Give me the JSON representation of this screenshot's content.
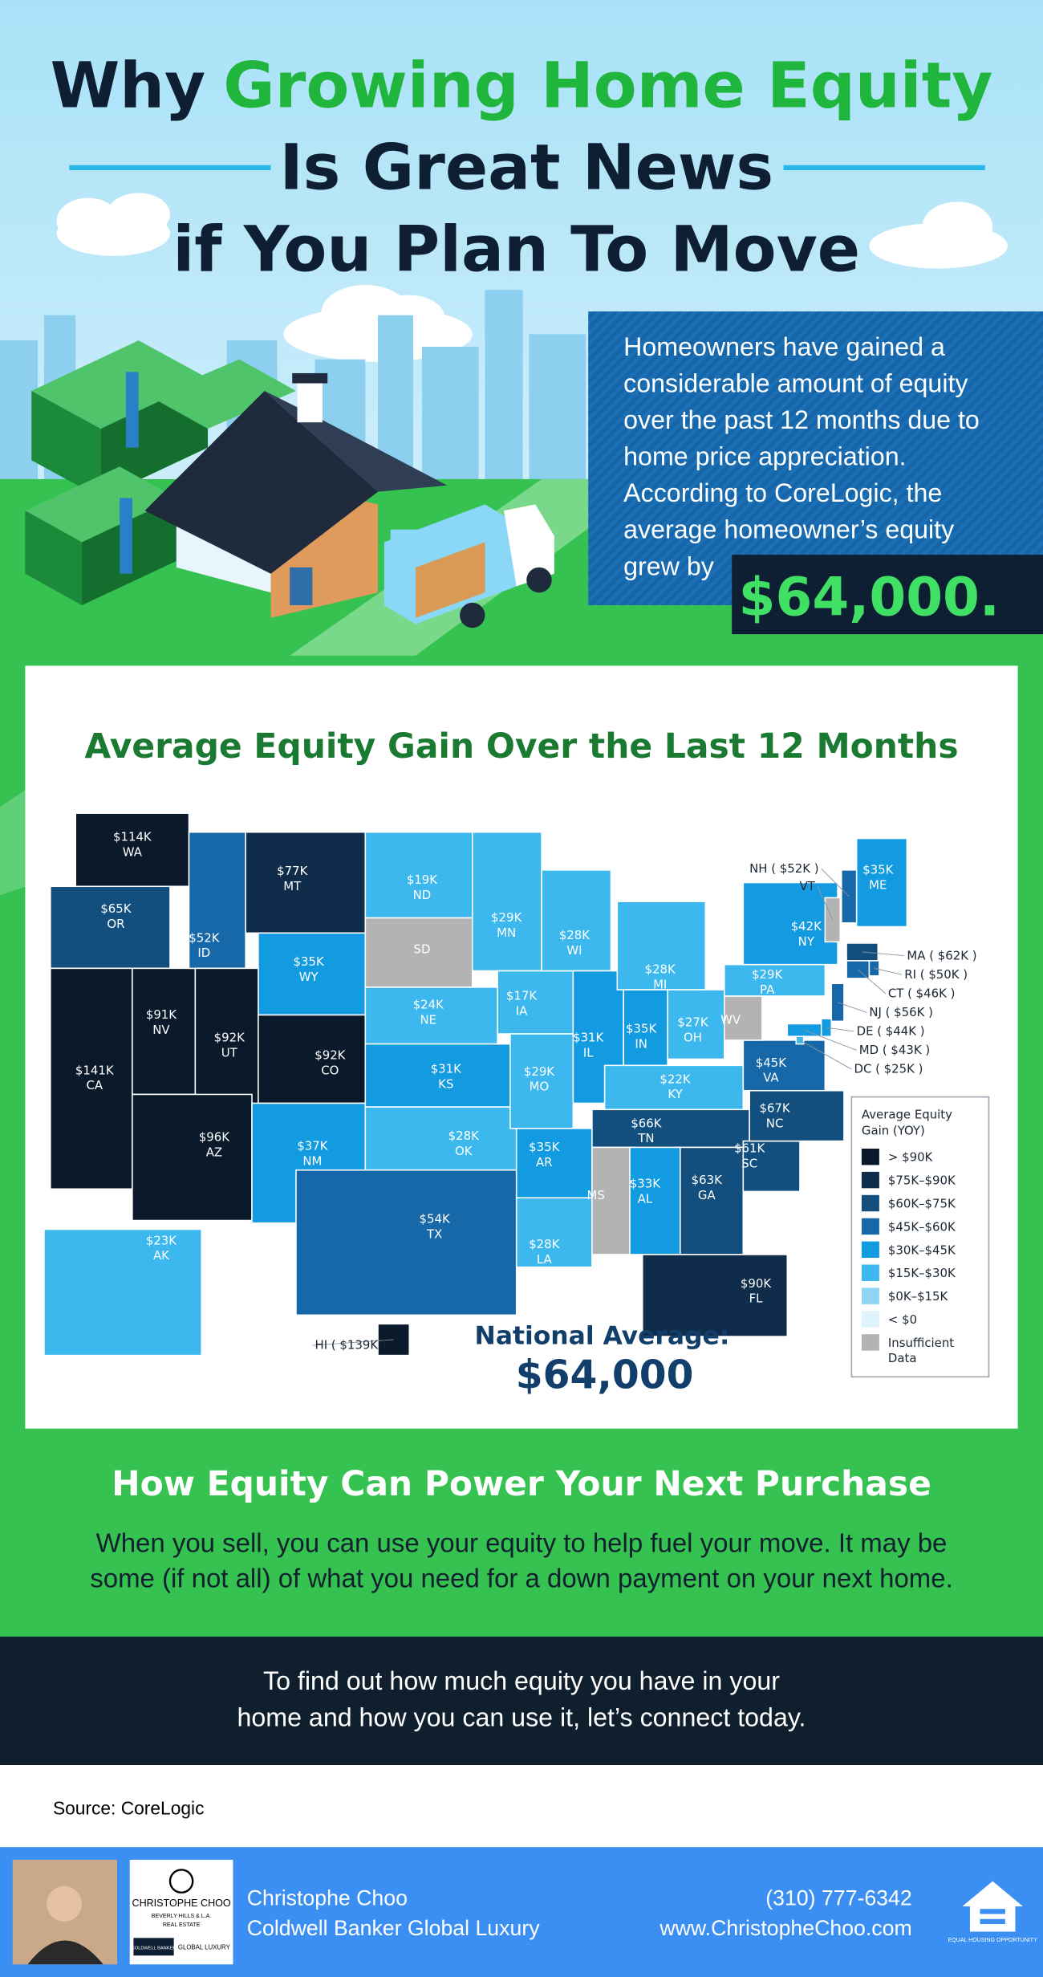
{
  "header": {
    "title_lead": "Why",
    "title_highlight": "Growing Home Equity",
    "title_line2": "Is Great News",
    "title_line3": "if You Plan To Move"
  },
  "intro": {
    "lines": [
      "Homeowners have gained a",
      "considerable amount of equity",
      "over the past 12 months due to",
      "home price appreciation.",
      "According to CoreLogic, the",
      "average homeowner’s equity",
      "grew by"
    ],
    "highlight": "$64,000."
  },
  "map": {
    "title": "Average Equity Gain Over the Last 12 Months",
    "states": [
      {
        "code": "WA",
        "value": "$114K",
        "color": "#0b1a2b"
      },
      {
        "code": "OR",
        "value": "$65K",
        "color": "#134f7e"
      },
      {
        "code": "CA",
        "value": "$141K",
        "color": "#0b1a2b"
      },
      {
        "code": "NV",
        "value": "$91K",
        "color": "#0b1a2b"
      },
      {
        "code": "ID",
        "value": "$52K",
        "color": "#1668a8"
      },
      {
        "code": "MT",
        "value": "$77K",
        "color": "#0f2d4a"
      },
      {
        "code": "WY",
        "value": "$35K",
        "color": "#139be2"
      },
      {
        "code": "UT",
        "value": "$92K",
        "color": "#0b1a2b"
      },
      {
        "code": "CO",
        "value": "$92K",
        "color": "#0b1a2b"
      },
      {
        "code": "AZ",
        "value": "$96K",
        "color": "#0b1a2b"
      },
      {
        "code": "NM",
        "value": "$37K",
        "color": "#139be2"
      },
      {
        "code": "ND",
        "value": "$19K",
        "color": "#3cb8ee"
      },
      {
        "code": "SD",
        "color": "#b3b3b3"
      },
      {
        "code": "NE",
        "value": "$24K",
        "color": "#3cb8ee"
      },
      {
        "code": "KS",
        "value": "$31K",
        "color": "#139be2"
      },
      {
        "code": "OK",
        "value": "$28K",
        "color": "#3cb8ee"
      },
      {
        "code": "TX",
        "value": "$54K",
        "color": "#1668a8"
      },
      {
        "code": "MN",
        "value": "$29K",
        "color": "#3cb8ee"
      },
      {
        "code": "IA",
        "value": "$17K",
        "color": "#3cb8ee"
      },
      {
        "code": "WI",
        "value": "$28K",
        "color": "#3cb8ee"
      },
      {
        "code": "MO",
        "value": "$29K",
        "color": "#3cb8ee"
      },
      {
        "code": "AR",
        "value": "$35K",
        "color": "#139be2"
      },
      {
        "code": "LA",
        "value": "$28K",
        "color": "#3cb8ee"
      },
      {
        "code": "IL",
        "value": "$31K",
        "color": "#139be2"
      },
      {
        "code": "MI",
        "value": "$28K",
        "color": "#3cb8ee"
      },
      {
        "code": "IN",
        "value": "$35K",
        "color": "#139be2"
      },
      {
        "code": "OH",
        "value": "$27K",
        "color": "#3cb8ee"
      },
      {
        "code": "KY",
        "value": "$22K",
        "color": "#3cb8ee"
      },
      {
        "code": "TN",
        "value": "$66K",
        "color": "#134f7e"
      },
      {
        "code": "MS",
        "color": "#b3b3b3"
      },
      {
        "code": "AL",
        "value": "$33K",
        "color": "#139be2"
      },
      {
        "code": "GA",
        "value": "$63K",
        "color": "#134f7e"
      },
      {
        "code": "SC",
        "value": "$61K",
        "color": "#134f7e"
      },
      {
        "code": "NC",
        "value": "$67K",
        "color": "#134f7e"
      },
      {
        "code": "FL",
        "value": "$90K",
        "color": "#0f2d4a"
      },
      {
        "code": "VA",
        "value": "$45K",
        "color": "#1668a8"
      },
      {
        "code": "WV",
        "color": "#b3b3b3"
      },
      {
        "code": "PA",
        "value": "$29K",
        "color": "#3cb8ee"
      },
      {
        "code": "NY",
        "value": "$42K",
        "color": "#139be2"
      },
      {
        "code": "ME",
        "value": "$35K",
        "color": "#139be2"
      },
      {
        "code": "AK",
        "value": "$23K",
        "color": "#3cb8ee"
      },
      {
        "label": "HI ( $139K )",
        "color": "#0b1a2b"
      },
      {
        "label": "NH ( $52K )",
        "color": "#1668a8"
      },
      {
        "label": "VT",
        "color": "#b3b3b3"
      },
      {
        "label": "MA ( $62K )",
        "color": "#134f7e"
      },
      {
        "label": "RI ( $50K )",
        "color": "#1668a8"
      },
      {
        "label": "CT ( $46K )",
        "color": "#1668a8"
      },
      {
        "label": "NJ ( $56K )",
        "color": "#1668a8"
      },
      {
        "label": "DE ( $44K )",
        "color": "#139be2"
      },
      {
        "label": "MD ( $43K )",
        "color": "#139be2"
      },
      {
        "label": "DC ( $25K )",
        "color": "#3cb8ee"
      }
    ],
    "legend": {
      "title": [
        "Average Equity",
        "Gain (YOY)"
      ],
      "items": [
        {
          "lines": [
            "> $90K"
          ],
          "color": "#0b1a2b"
        },
        {
          "lines": [
            "$75K–$90K"
          ],
          "color": "#0f2d4a"
        },
        {
          "lines": [
            "$60K–$75K"
          ],
          "color": "#134f7e"
        },
        {
          "lines": [
            "$45K–$60K"
          ],
          "color": "#1668a8"
        },
        {
          "lines": [
            "$30K–$45K"
          ],
          "color": "#139be2"
        },
        {
          "lines": [
            "$15K–$30K"
          ],
          "color": "#3cb8ee"
        },
        {
          "lines": [
            "$0K–$15K"
          ],
          "color": "#8fd3f5"
        },
        {
          "lines": [
            "< $0"
          ],
          "color": "#dff3fc"
        },
        {
          "lines": [
            "Insufficient",
            "Data"
          ],
          "color": "#b3b3b3"
        }
      ]
    },
    "national_average": {
      "label": "National Average:",
      "value": "$64,000"
    }
  },
  "purchase": {
    "heading": "How Equity Can Power Your Next Purchase",
    "lines": [
      "When you sell, you can use your equity to help fuel your move. It may be",
      "some (if not all) of what you need for a down payment on your next home."
    ]
  },
  "cta": {
    "lines": [
      "To find out how much equity you have in your",
      "home and how you can use it, let’s connect today."
    ]
  },
  "source": "Source: CoreLogic",
  "footer": {
    "name": "Christophe Choo",
    "company": "Coldwell Banker Global Luxury",
    "phone": "(310) 777-6342",
    "website": "www.ChristopheChoo.com",
    "logo_name": "CHRISTOPHE CHOO",
    "logo_sub": "BEVERLY HILLS & L.A.",
    "logo_re": "REAL ESTATE",
    "logo_cb": "COLDWELL BANKER",
    "logo_gl": "GLOBAL LUXURY",
    "eho": "EQUAL HOUSING OPPORTUNITY"
  }
}
